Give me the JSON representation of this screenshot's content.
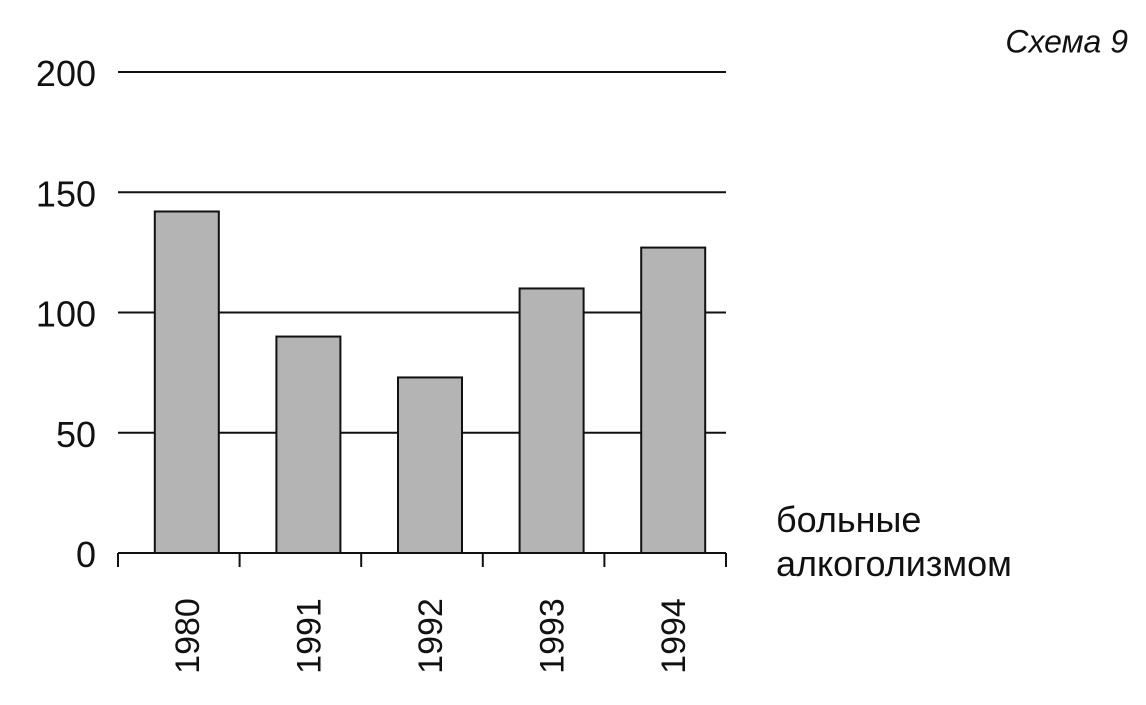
{
  "chart_data": {
    "type": "bar",
    "title": "Схема 9",
    "categories": [
      "1980",
      "1991",
      "1992",
      "1993",
      "1994"
    ],
    "series": [
      {
        "name": "больные алкоголизмом",
        "color": "#b4b4b4",
        "values": [
          142,
          90,
          73,
          110,
          127
        ]
      }
    ],
    "ylim": [
      0,
      200
    ],
    "yticks": [
      0,
      50,
      100,
      150,
      200
    ],
    "grid": true
  }
}
